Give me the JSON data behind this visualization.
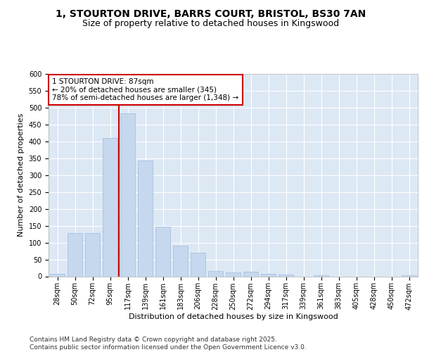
{
  "title_line1": "1, STOURTON DRIVE, BARRS COURT, BRISTOL, BS30 7AN",
  "title_line2": "Size of property relative to detached houses in Kingswood",
  "xlabel": "Distribution of detached houses by size in Kingswood",
  "ylabel": "Number of detached properties",
  "categories": [
    "28sqm",
    "50sqm",
    "72sqm",
    "95sqm",
    "117sqm",
    "139sqm",
    "161sqm",
    "183sqm",
    "206sqm",
    "228sqm",
    "250sqm",
    "272sqm",
    "294sqm",
    "317sqm",
    "339sqm",
    "361sqm",
    "383sqm",
    "405sqm",
    "428sqm",
    "450sqm",
    "472sqm"
  ],
  "values": [
    8,
    128,
    128,
    410,
    483,
    343,
    148,
    90,
    70,
    16,
    12,
    14,
    7,
    6,
    0,
    4,
    0,
    0,
    0,
    0,
    3
  ],
  "bar_color": "#c5d8ed",
  "bar_edge_color": "#a0bcd8",
  "bar_width": 0.85,
  "vline_x": 3.5,
  "vline_color": "#cc0000",
  "annotation_text": "1 STOURTON DRIVE: 87sqm\n← 20% of detached houses are smaller (345)\n78% of semi-detached houses are larger (1,348) →",
  "annotation_box_color": "#ffffff",
  "annotation_box_edge": "#cc0000",
  "ylim": [
    0,
    600
  ],
  "yticks": [
    0,
    50,
    100,
    150,
    200,
    250,
    300,
    350,
    400,
    450,
    500,
    550,
    600
  ],
  "background_color": "#dde8f5",
  "grid_color": "#ffffff",
  "fig_background": "#ffffff",
  "footer_text": "Contains HM Land Registry data © Crown copyright and database right 2025.\nContains public sector information licensed under the Open Government Licence v3.0.",
  "title_fontsize": 10,
  "subtitle_fontsize": 9,
  "axis_label_fontsize": 8,
  "tick_fontsize": 7,
  "annotation_fontsize": 7.5,
  "footer_fontsize": 6.5
}
